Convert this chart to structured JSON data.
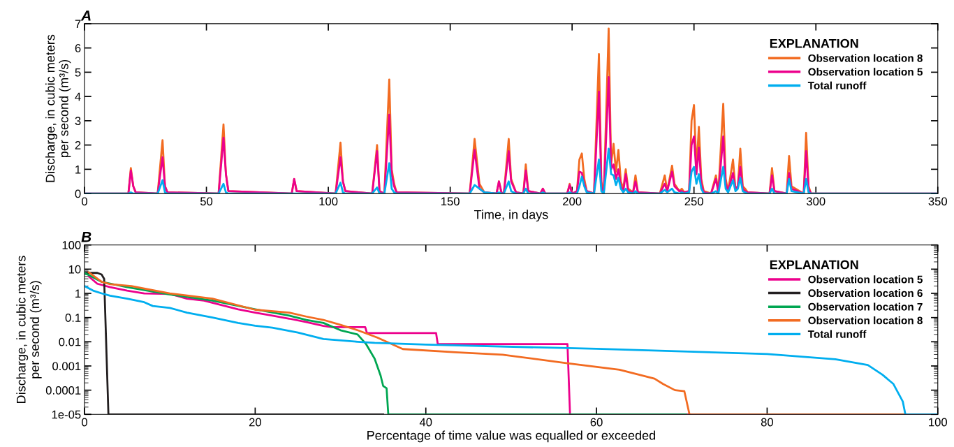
{
  "chart_data": [
    {
      "type": "line",
      "title": "A",
      "xlabel": "Time, in days",
      "ylabel": "Discharge, in cubic meters\nper second (m³/s)",
      "legend_title": "EXPLANATION",
      "legend": "top right",
      "grid": false,
      "marker": "none",
      "line_style": "solid",
      "xlim": [
        0,
        350
      ],
      "xticks": [
        0,
        50,
        100,
        150,
        200,
        250,
        300,
        350
      ],
      "ylim": [
        0,
        7
      ],
      "yticks": [
        0,
        1,
        2,
        3,
        4,
        5,
        6,
        7
      ],
      "x": [
        0,
        18,
        19,
        20,
        21,
        30,
        32,
        33,
        34,
        55,
        57,
        58,
        59,
        85,
        86,
        87,
        103,
        105,
        106,
        107,
        118,
        120,
        121,
        123,
        125,
        126,
        127,
        128,
        158,
        160,
        162,
        164,
        169,
        170,
        171,
        172,
        174,
        175,
        177,
        180,
        181,
        182,
        187,
        188,
        189,
        198,
        199,
        200,
        202,
        203,
        204,
        205,
        206,
        209,
        211,
        212,
        213,
        215,
        216,
        217,
        218,
        219,
        220,
        221,
        222,
        223,
        225,
        226,
        227,
        236,
        238,
        239,
        241,
        242,
        244,
        245,
        246,
        248,
        249,
        250,
        251,
        252,
        253,
        254,
        257,
        259,
        260,
        262,
        263,
        264,
        266,
        267,
        268,
        269,
        270,
        271,
        272,
        281,
        282,
        283,
        288,
        289,
        290,
        295,
        296,
        297,
        298,
        350
      ],
      "series": [
        {
          "name": "Observation location 8",
          "color": "#f26b21",
          "values": [
            0,
            0,
            1.05,
            0.3,
            0.05,
            0,
            2.2,
            0.3,
            0.05,
            0,
            2.85,
            0.8,
            0.1,
            0,
            0.6,
            0.1,
            0,
            2.1,
            0.5,
            0.1,
            0,
            2.0,
            0.1,
            0,
            4.7,
            1.0,
            0.4,
            0.05,
            0,
            2.25,
            0.4,
            0.05,
            0,
            0.5,
            0.05,
            0,
            2.25,
            0.6,
            0.05,
            0,
            1.2,
            0.1,
            0,
            0.2,
            0,
            0,
            0.4,
            0,
            0.1,
            1.4,
            1.65,
            0.6,
            0.1,
            0,
            5.75,
            0.5,
            0,
            6.8,
            1.2,
            2.05,
            0.9,
            1.8,
            0.5,
            0.2,
            1.0,
            0.2,
            0.05,
            0.75,
            0.05,
            0,
            0.75,
            0.1,
            1.15,
            0.4,
            0.1,
            0.2,
            0.05,
            0.1,
            3.0,
            3.65,
            1.0,
            2.75,
            0.6,
            0.1,
            0,
            0.75,
            0.05,
            3.7,
            0.6,
            0.1,
            1.4,
            0.2,
            0.3,
            1.85,
            0.3,
            0.2,
            0.05,
            0,
            1.05,
            0.1,
            0,
            1.55,
            0.3,
            0,
            2.5,
            0.3,
            0,
            0
          ]
        },
        {
          "name": "Observation location 5",
          "color": "#ec008c",
          "values": [
            0,
            0,
            0.95,
            0.3,
            0.05,
            0,
            1.5,
            0.3,
            0.05,
            0,
            2.3,
            0.8,
            0.1,
            0,
            0.6,
            0.1,
            0,
            1.5,
            0.5,
            0.1,
            0,
            1.75,
            0.1,
            0,
            3.25,
            0.8,
            0.3,
            0.05,
            0,
            1.8,
            0.2,
            0.05,
            0,
            0.5,
            0.05,
            0,
            1.75,
            0.5,
            0.05,
            0,
            0.95,
            0.1,
            0,
            0.2,
            0,
            0,
            0.35,
            0,
            0.1,
            0.9,
            0.85,
            0.4,
            0.1,
            0,
            4.2,
            0.3,
            0,
            4.8,
            1.0,
            1.2,
            0.6,
            1.0,
            0.3,
            0.1,
            0.8,
            0.1,
            0.05,
            0.5,
            0.05,
            0,
            0.4,
            0.1,
            0.9,
            0.3,
            0.1,
            0.1,
            0.05,
            0.1,
            2.0,
            2.35,
            0.8,
            1.9,
            0.4,
            0.05,
            0,
            0.6,
            0.05,
            2.35,
            0.4,
            0.1,
            0.85,
            0.2,
            0.3,
            1.1,
            0.2,
            0.1,
            0.05,
            0,
            0.75,
            0.1,
            0,
            0.85,
            0.2,
            0,
            1.75,
            0.2,
            0,
            0
          ]
        },
        {
          "name": "Total runoff",
          "color": "#00aeef",
          "values": [
            0,
            0,
            0.05,
            0,
            0,
            0,
            0.55,
            0.05,
            0,
            0,
            0.4,
            0.05,
            0,
            0,
            0,
            0,
            0,
            0.45,
            0.05,
            0,
            0,
            0.25,
            0,
            0,
            1.25,
            0.2,
            0.05,
            0,
            0,
            0.35,
            0.2,
            0.05,
            0,
            0.05,
            0,
            0,
            0.5,
            0.1,
            0,
            0,
            0.2,
            0,
            0,
            0.05,
            0,
            0,
            0.05,
            0,
            0,
            0.3,
            0.7,
            0.3,
            0.05,
            0,
            1.4,
            0.1,
            0,
            1.85,
            0.8,
            0.75,
            0.35,
            0.65,
            0.2,
            0.05,
            0.2,
            0.05,
            0,
            0.1,
            0,
            0,
            0.15,
            0.05,
            0.2,
            0.05,
            0,
            0.05,
            0,
            0.05,
            0.9,
            1.1,
            0.4,
            0.8,
            0.2,
            0,
            0,
            0.1,
            0,
            1.1,
            0.2,
            0.05,
            0.55,
            0.1,
            0.2,
            0.65,
            0.1,
            0.05,
            0,
            0,
            0.2,
            0,
            0,
            0.6,
            0.1,
            0,
            0.6,
            0.05,
            0,
            0
          ]
        }
      ]
    },
    {
      "type": "line",
      "title": "B",
      "xlabel": "Percentage of time value was equalled or exceeded",
      "ylabel": "Discharge, in cubic meters\nper second (m³/s)",
      "legend_title": "EXPLANATION",
      "legend": "top right",
      "grid": false,
      "marker": "none",
      "line_style": "solid",
      "log": "y",
      "xlim": [
        0,
        100
      ],
      "xticks": [
        0,
        20,
        40,
        60,
        80,
        100
      ],
      "ylim": [
        1e-05,
        100
      ],
      "yticks": [
        {
          "value": 1e-05,
          "label": "1e-05"
        },
        {
          "value": 0.0001,
          "label": "0.0001"
        },
        {
          "value": 0.001,
          "label": "0.001"
        },
        {
          "value": 0.01,
          "label": "0.01"
        },
        {
          "value": 0.1,
          "label": "0.1"
        },
        {
          "value": 1,
          "label": "1"
        },
        {
          "value": 10,
          "label": "10"
        },
        {
          "value": 100,
          "label": "100"
        }
      ],
      "series": [
        {
          "name": "Observation location 5",
          "color": "#ec008c",
          "x": [
            0.5,
            1.5,
            3,
            5,
            7,
            10,
            12,
            14,
            16,
            18,
            20,
            22,
            24,
            26,
            28,
            29,
            32.9,
            33.1,
            41.2,
            41.4,
            56.6,
            56.9,
            100
          ],
          "values": [
            5,
            2.5,
            1.8,
            1.3,
            1.0,
            0.95,
            0.6,
            0.5,
            0.33,
            0.22,
            0.16,
            0.12,
            0.09,
            0.065,
            0.045,
            0.04,
            0.04,
            0.023,
            0.023,
            0.008,
            0.008,
            1e-05,
            1e-05
          ]
        },
        {
          "name": "Observation location 6",
          "color": "#231f20",
          "x": [
            0,
            1.5,
            2.0,
            2.3,
            2.8,
            35
          ],
          "values": [
            7,
            7,
            6,
            4,
            1e-05,
            1e-05
          ]
        },
        {
          "name": "Observation location 7",
          "color": "#00a651",
          "x": [
            0,
            2,
            5,
            10,
            15,
            20,
            24,
            26,
            28,
            30,
            32,
            33,
            34,
            34.7,
            35,
            35.4,
            35.6,
            70.5
          ],
          "values": [
            7,
            3,
            1.8,
            0.9,
            0.5,
            0.22,
            0.12,
            0.08,
            0.06,
            0.03,
            0.02,
            0.008,
            0.002,
            0.0004,
            0.00015,
            0.00012,
            1e-05,
            1e-05
          ]
        },
        {
          "name": "Observation location 8",
          "color": "#f26b21",
          "x": [
            0.5,
            2,
            3,
            5.5,
            10,
            15,
            20,
            24,
            26,
            28,
            30,
            32,
            34.3,
            37.3,
            43.5,
            49,
            56.6,
            62.7,
            66.8,
            67.8,
            69.2,
            70.3,
            70.9,
            96
          ],
          "values": [
            7.4,
            3,
            2.4,
            2.0,
            1.0,
            0.6,
            0.21,
            0.16,
            0.11,
            0.08,
            0.05,
            0.03,
            0.015,
            0.005,
            0.0037,
            0.0029,
            0.0013,
            0.0007,
            0.0003,
            0.00018,
            0.0001,
            9e-05,
            1e-05,
            1e-05
          ]
        },
        {
          "name": "Total runoff",
          "color": "#00aeef",
          "x": [
            0,
            1,
            2,
            3,
            5,
            7,
            8,
            10,
            12,
            15,
            18,
            20,
            22,
            25,
            28,
            32,
            34,
            40,
            60,
            80,
            88,
            91.8,
            93.5,
            94.8,
            95.9,
            96.2,
            100
          ],
          "values": [
            2.0,
            1.3,
            1.0,
            0.8,
            0.6,
            0.43,
            0.3,
            0.25,
            0.16,
            0.1,
            0.06,
            0.046,
            0.038,
            0.024,
            0.013,
            0.01,
            0.009,
            0.0076,
            0.0051,
            0.0031,
            0.0019,
            0.0011,
            0.00044,
            0.00018,
            3.4e-05,
            1e-05,
            1e-05
          ]
        }
      ]
    }
  ]
}
